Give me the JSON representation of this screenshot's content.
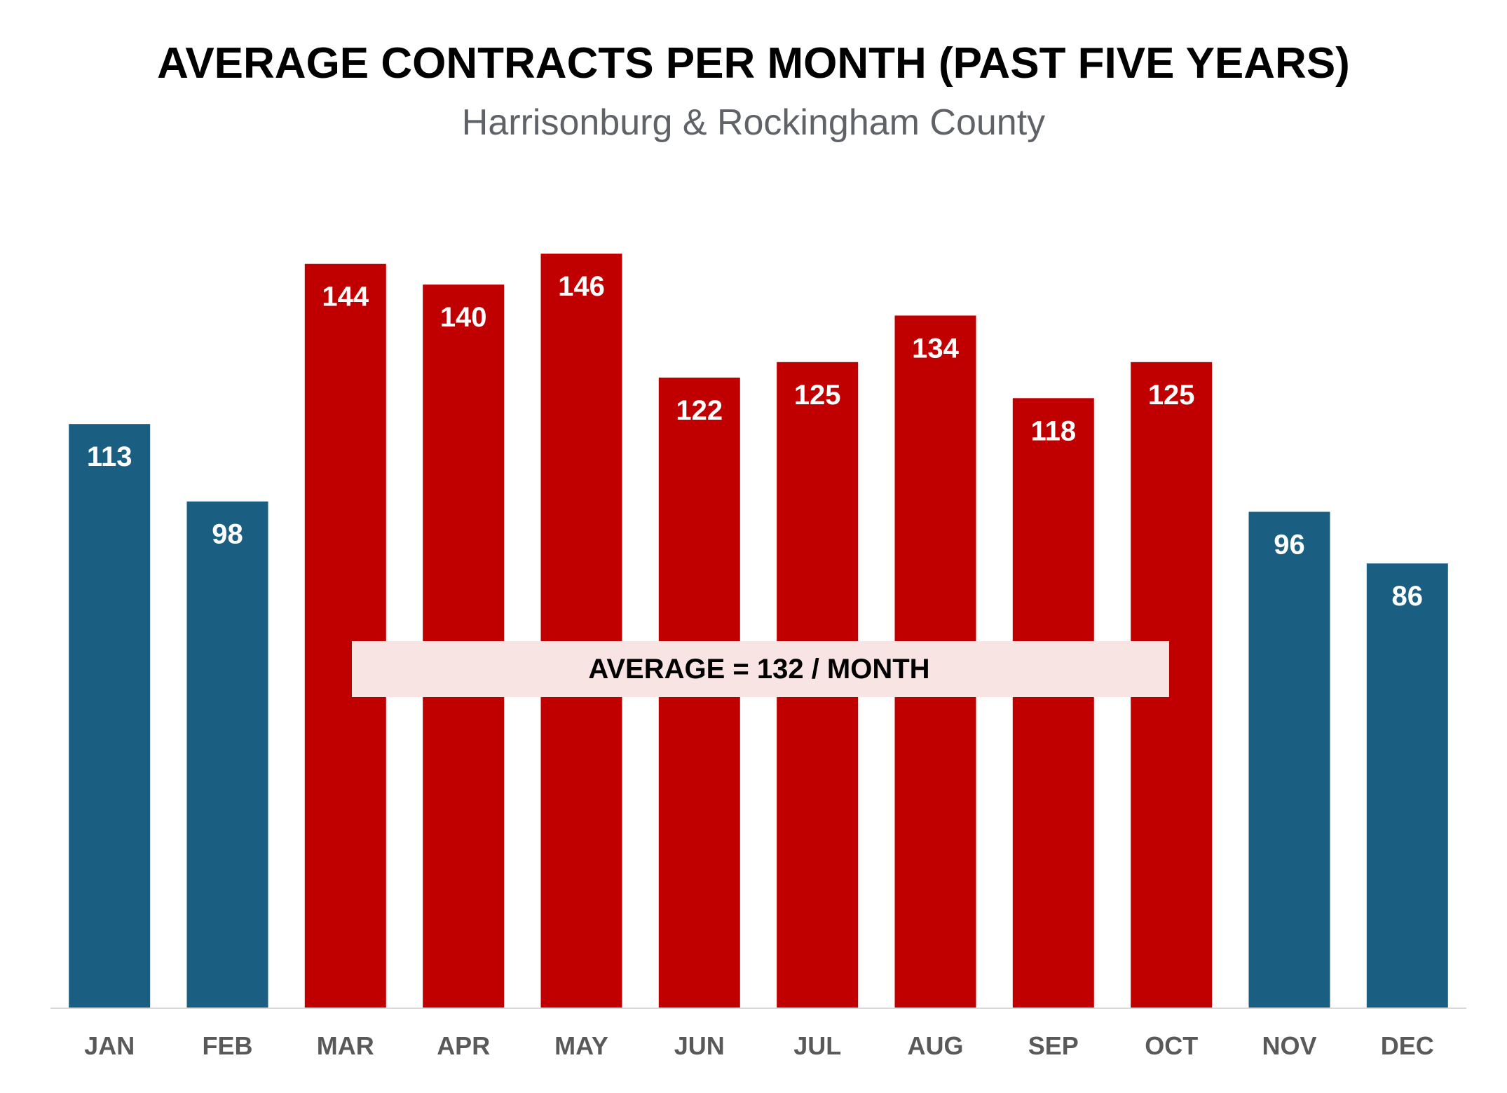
{
  "chart_data": {
    "type": "bar",
    "title": "AVERAGE CONTRACTS PER MONTH  (PAST FIVE YEARS)",
    "subtitle": "Harrisonburg & Rockingham County",
    "categories": [
      "JAN",
      "FEB",
      "MAR",
      "APR",
      "MAY",
      "JUN",
      "JUL",
      "AUG",
      "SEP",
      "OCT",
      "NOV",
      "DEC"
    ],
    "values": [
      113,
      98,
      144,
      140,
      146,
      122,
      125,
      134,
      118,
      125,
      96,
      86
    ],
    "highlight": [
      false,
      false,
      true,
      true,
      true,
      true,
      true,
      true,
      true,
      true,
      false,
      false
    ],
    "ylim": [
      0,
      170
    ],
    "xlabel": "",
    "ylabel": "",
    "grid": false,
    "average": {
      "value": 132,
      "label": "AVERAGE = 132 / MONTH"
    },
    "colors": {
      "base": "#1a5f82",
      "highlight": "#c00000",
      "average_band": "#f9e4e4",
      "axis": "#d9d9d9"
    }
  }
}
